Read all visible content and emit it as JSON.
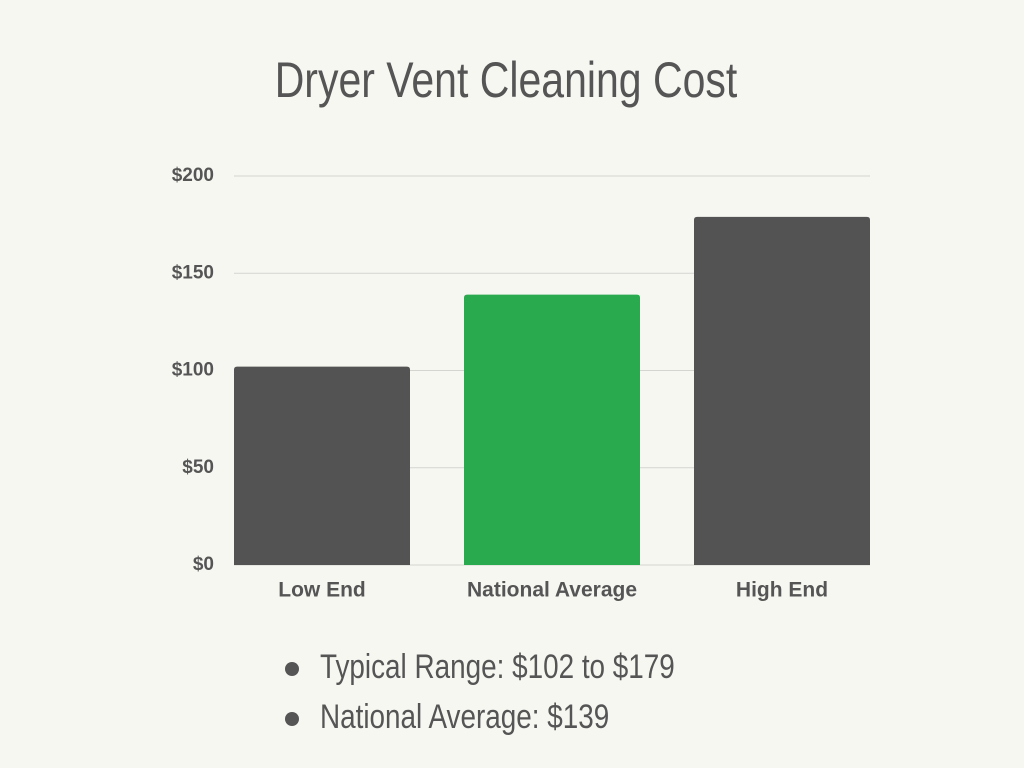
{
  "chart_data": {
    "type": "bar",
    "title": "Dryer Vent Cleaning Cost",
    "categories": [
      "Low End",
      "National Average",
      "High End"
    ],
    "values": [
      102,
      139,
      179
    ],
    "colors": [
      "#535353",
      "#2aaa4f",
      "#535353"
    ],
    "ylim": [
      0,
      200
    ],
    "yticks": [
      {
        "value": 0,
        "label": "$0"
      },
      {
        "value": 50,
        "label": "$50"
      },
      {
        "value": 100,
        "label": "$100"
      },
      {
        "value": 150,
        "label": "$150"
      },
      {
        "value": 200,
        "label": "$200"
      }
    ],
    "grid": true,
    "notes": [
      "Typical Range: $102 to $179",
      "National Average: $139"
    ]
  }
}
